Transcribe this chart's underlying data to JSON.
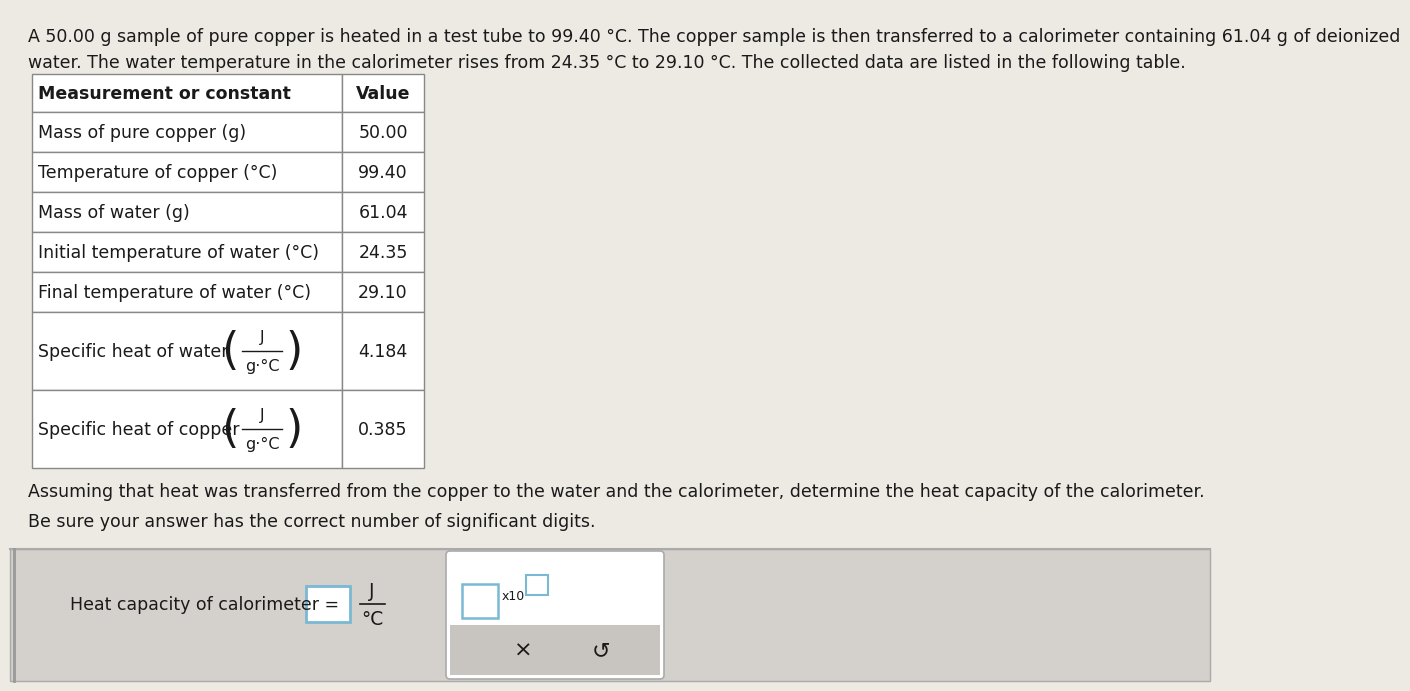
{
  "bg_color": "#ede9e3",
  "text_color": "#1a1a1a",
  "intro_line1": "A 50.00 g sample of pure copper is heated in a test tube to 99.40 °C. The copper sample is then transferred to a calorimeter containing 61.04 g of deionized",
  "intro_line2": "water. The water temperature in the calorimeter rises from 24.35 °C to 29.10 °C. The collected data are listed in the following table.",
  "header_col1": "Measurement or constant",
  "header_col2": "Value",
  "rows": [
    {
      "label": "Mass of pure copper (g)",
      "value": "50.00",
      "tall": false
    },
    {
      "label": "Temperature of copper (°C)",
      "value": "99.40",
      "tall": false
    },
    {
      "label": "Mass of water (g)",
      "value": "61.04",
      "tall": false
    },
    {
      "label": "Initial temperature of water (°C)",
      "value": "24.35",
      "tall": false
    },
    {
      "label": "Final temperature of water (°C)",
      "value": "29.10",
      "tall": false
    },
    {
      "label": "Specific heat of water",
      "value": "4.184",
      "tall": true,
      "frac": true
    },
    {
      "label": "Specific heat of copper",
      "value": "0.385",
      "tall": true,
      "frac": true
    }
  ],
  "assuming_text": "Assuming that heat was transferred from the copper to the water and the calorimeter, determine the heat capacity of the calorimeter.",
  "sigfig_text": "Be sure your answer has the correct number of significant digits.",
  "answer_label": "Heat capacity of calorimeter =",
  "bottom_bg": "#d4d0cb",
  "table_border": "#888888",
  "input_border": "#7ab8d4",
  "font_size": 12.5
}
